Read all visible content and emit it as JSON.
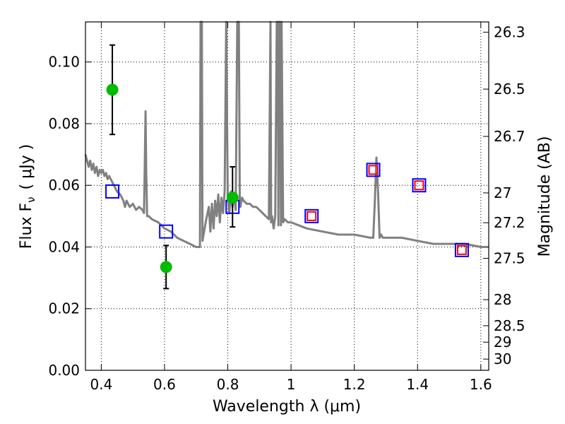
{
  "chart_data": {
    "type": "scatter",
    "xlabel": "Wavelength  λ (μm)",
    "ylabel": "Flux  F",
    "ylabel_sub": "ν",
    "ylabel_unit": "( μJy )",
    "y2label": "Magnitude (AB)",
    "xlim": [
      0.35,
      1.625
    ],
    "ylim": [
      0.0,
      0.113
    ],
    "grid": true,
    "xticks": [
      0.4,
      0.6,
      0.8,
      1.0,
      1.2,
      1.4,
      1.6
    ],
    "xtick_labels": [
      "0.4",
      "0.6",
      "0.8",
      "1",
      "1.2",
      "1.4",
      "1.6"
    ],
    "yticks": [
      0.0,
      0.02,
      0.04,
      0.06,
      0.08,
      0.1
    ],
    "ytick_labels": [
      "0.00",
      "0.02",
      "0.04",
      "0.06",
      "0.08",
      "0.10"
    ],
    "y2ticks": [
      "26.3",
      "26.5",
      "26.7",
      "27",
      "27.2",
      "27.5",
      "28",
      "28.5",
      "29",
      "30"
    ],
    "series": [
      {
        "kind": "line",
        "color": "#808080",
        "x": [
          0.35,
          0.355,
          0.36,
          0.365,
          0.37,
          0.375,
          0.38,
          0.385,
          0.39,
          0.395,
          0.4,
          0.405,
          0.41,
          0.415,
          0.42,
          0.425,
          0.43,
          0.44,
          0.45,
          0.46,
          0.47,
          0.475,
          0.48,
          0.49,
          0.5,
          0.51,
          0.52,
          0.53,
          0.535,
          0.538,
          0.54,
          0.542,
          0.545,
          0.55,
          0.56,
          0.58,
          0.6,
          0.62,
          0.64,
          0.66,
          0.68,
          0.7,
          0.712,
          0.714,
          0.716,
          0.718,
          0.72,
          0.73,
          0.74,
          0.745,
          0.75,
          0.755,
          0.76,
          0.765,
          0.77,
          0.775,
          0.78,
          0.785,
          0.79,
          0.795,
          0.8,
          0.805,
          0.81,
          0.815,
          0.82,
          0.825,
          0.83,
          0.835,
          0.838,
          0.84,
          0.845,
          0.85,
          0.86,
          0.87,
          0.88,
          0.89,
          0.9,
          0.91,
          0.92,
          0.93,
          0.935,
          0.937,
          0.94,
          0.945,
          0.95,
          0.955,
          0.958,
          0.96,
          0.962,
          0.965,
          0.968,
          0.97,
          0.975,
          0.98,
          0.99,
          1.0,
          1.05,
          1.1,
          1.15,
          1.2,
          1.25,
          1.26,
          1.265,
          1.27,
          1.275,
          1.28,
          1.285,
          1.29,
          1.3,
          1.35,
          1.4,
          1.45,
          1.5,
          1.55,
          1.6,
          1.625
        ],
        "values": [
          0.07,
          0.068,
          0.066,
          0.068,
          0.065,
          0.067,
          0.064,
          0.066,
          0.063,
          0.065,
          0.064,
          0.065,
          0.063,
          0.064,
          0.062,
          0.063,
          0.062,
          0.06,
          0.058,
          0.057,
          0.055,
          0.053,
          0.055,
          0.053,
          0.054,
          0.052,
          0.053,
          0.052,
          0.051,
          0.07,
          0.084,
          0.065,
          0.05,
          0.05,
          0.049,
          0.048,
          0.046,
          0.045,
          0.043,
          0.042,
          0.041,
          0.04,
          0.04,
          0.115,
          0.115,
          0.115,
          0.042,
          0.048,
          0.053,
          0.045,
          0.054,
          0.046,
          0.055,
          0.05,
          0.057,
          0.048,
          0.056,
          0.051,
          0.058,
          0.115,
          0.056,
          0.051,
          0.058,
          0.053,
          0.057,
          0.052,
          0.115,
          0.115,
          0.055,
          0.053,
          0.056,
          0.055,
          0.054,
          0.054,
          0.053,
          0.053,
          0.052,
          0.051,
          0.05,
          0.049,
          0.115,
          0.048,
          0.05,
          0.046,
          0.05,
          0.115,
          0.115,
          0.047,
          0.115,
          0.115,
          0.047,
          0.115,
          0.048,
          0.049,
          0.048,
          0.048,
          0.046,
          0.045,
          0.044,
          0.044,
          0.043,
          0.043,
          0.055,
          0.069,
          0.058,
          0.043,
          0.044,
          0.043,
          0.043,
          0.043,
          0.042,
          0.041,
          0.041,
          0.041,
          0.04,
          0.04
        ]
      },
      {
        "kind": "square",
        "color": "#0000ff",
        "x": [
          0.435,
          0.605,
          0.815,
          1.065,
          1.26,
          1.405,
          1.54
        ],
        "values": [
          0.058,
          0.045,
          0.053,
          0.05,
          0.065,
          0.06,
          0.039
        ]
      },
      {
        "kind": "square",
        "color": "#ff0000",
        "x": [
          1.065,
          1.26,
          1.405,
          1.54
        ],
        "values": [
          0.05,
          0.065,
          0.06,
          0.039
        ]
      },
      {
        "kind": "circle-errorbar",
        "color": "#00bb00",
        "x": [
          0.435,
          0.605,
          0.815
        ],
        "values": [
          0.091,
          0.0335,
          0.056
        ],
        "err_low": [
          0.0765,
          0.0265,
          0.0465
        ],
        "err_high": [
          0.1055,
          0.0405,
          0.066
        ]
      }
    ]
  }
}
